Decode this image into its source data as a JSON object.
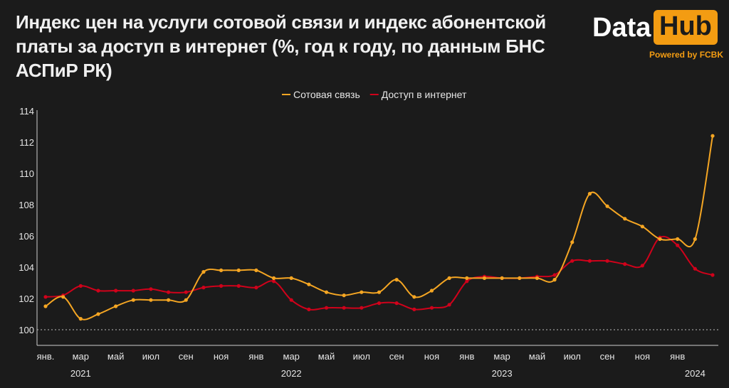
{
  "header": {
    "title": "Индекс цен на услуги сотовой связи и индекс абонентской платы за доступ в интернет (%, год к году, по данным БНС АСПиР РК)"
  },
  "logo": {
    "part1": "Data",
    "part2": "Hub",
    "subtitle": "Powered by FCBK",
    "accent": "#f39c12"
  },
  "chart_data": {
    "type": "line",
    "x": [
      "2021-01",
      "2021-02",
      "2021-03",
      "2021-04",
      "2021-05",
      "2021-06",
      "2021-07",
      "2021-08",
      "2021-09",
      "2021-10",
      "2021-11",
      "2021-12",
      "2022-01",
      "2022-02",
      "2022-03",
      "2022-04",
      "2022-05",
      "2022-06",
      "2022-07",
      "2022-08",
      "2022-09",
      "2022-10",
      "2022-11",
      "2022-12",
      "2023-01",
      "2023-02",
      "2023-03",
      "2023-04",
      "2023-05",
      "2023-06",
      "2023-07",
      "2023-08",
      "2023-09",
      "2023-10",
      "2023-11",
      "2023-12",
      "2024-01",
      "2024-02",
      "2024-03"
    ],
    "series": [
      {
        "name": "Сотовая связь",
        "color": "#f5a623",
        "values": [
          101.5,
          102.1,
          100.7,
          101.0,
          101.5,
          101.9,
          101.9,
          101.9,
          101.9,
          103.7,
          103.8,
          103.8,
          103.8,
          103.3,
          103.3,
          102.9,
          102.4,
          102.2,
          102.4,
          102.4,
          103.2,
          102.1,
          102.5,
          103.3,
          103.3,
          103.3,
          103.3,
          103.3,
          103.3,
          103.2,
          105.6,
          108.7,
          107.9,
          107.1,
          106.6,
          105.8,
          105.8,
          105.8,
          112.4
        ]
      },
      {
        "name": "Доступ в интернет",
        "color": "#d0021b",
        "values": [
          102.1,
          102.2,
          102.8,
          102.5,
          102.5,
          102.5,
          102.6,
          102.4,
          102.4,
          102.7,
          102.8,
          102.8,
          102.7,
          103.1,
          101.9,
          101.3,
          101.4,
          101.4,
          101.4,
          101.7,
          101.7,
          101.3,
          101.4,
          101.6,
          103.1,
          103.4,
          103.3,
          103.3,
          103.4,
          103.5,
          104.4,
          104.4,
          104.4,
          104.2,
          104.1,
          105.9,
          105.4,
          103.9,
          103.5
        ]
      }
    ],
    "y_ticks": [
      "100",
      "102",
      "104",
      "106",
      "108",
      "110",
      "112",
      "114"
    ],
    "ylim": [
      99,
      114.5
    ],
    "reference_line": 100,
    "month_labels": [
      {
        "index": 0,
        "label": "янв."
      },
      {
        "index": 2,
        "label": "мар"
      },
      {
        "index": 4,
        "label": "май"
      },
      {
        "index": 6,
        "label": "июл"
      },
      {
        "index": 8,
        "label": "сен"
      },
      {
        "index": 10,
        "label": "ноя"
      },
      {
        "index": 12,
        "label": "янв"
      },
      {
        "index": 14,
        "label": "мар"
      },
      {
        "index": 16,
        "label": "май"
      },
      {
        "index": 18,
        "label": "июл"
      },
      {
        "index": 20,
        "label": "сен"
      },
      {
        "index": 22,
        "label": "ноя"
      },
      {
        "index": 24,
        "label": "янв"
      },
      {
        "index": 26,
        "label": "мар"
      },
      {
        "index": 28,
        "label": "май"
      },
      {
        "index": 30,
        "label": "июл"
      },
      {
        "index": 32,
        "label": "сен"
      },
      {
        "index": 34,
        "label": "ноя"
      },
      {
        "index": 36,
        "label": "янв"
      }
    ],
    "year_labels": [
      {
        "index": 2,
        "label": "2021"
      },
      {
        "index": 14,
        "label": "2022"
      },
      {
        "index": 26,
        "label": "2023"
      },
      {
        "index": 37,
        "label": "2024"
      }
    ],
    "legend_position": "top-center",
    "grid": false
  }
}
